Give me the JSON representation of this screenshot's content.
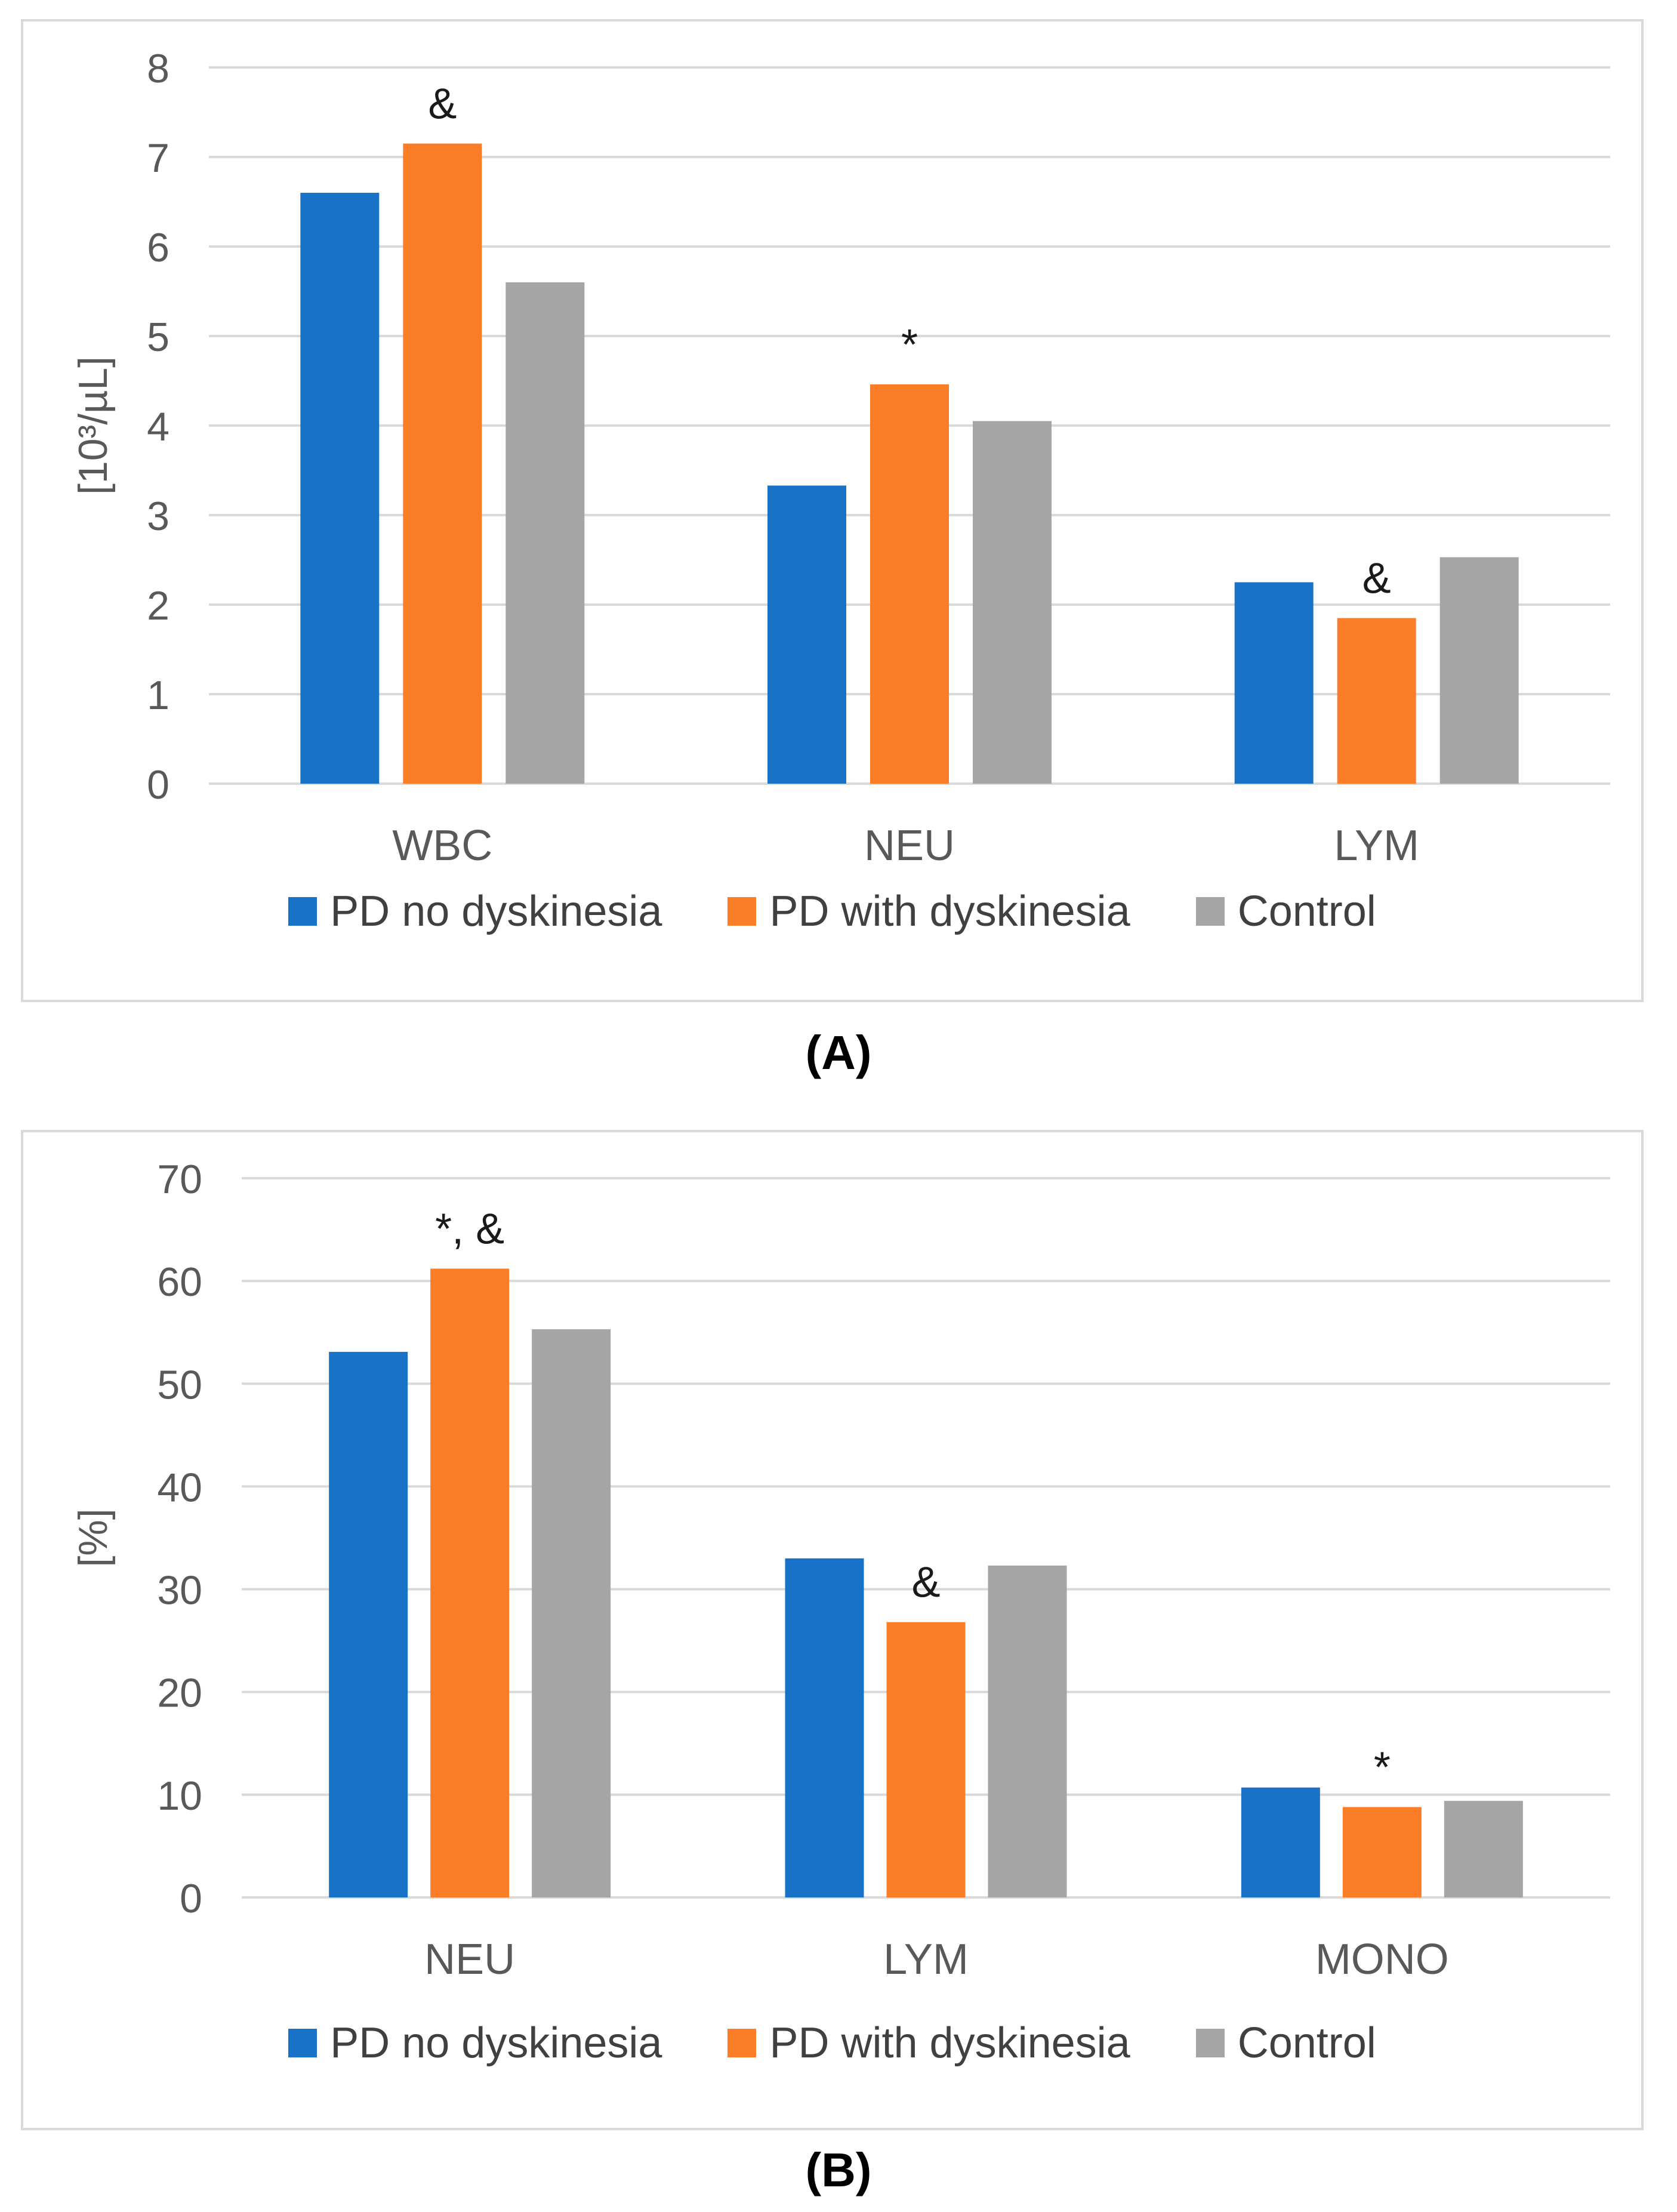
{
  "colors": {
    "series0": "#1872C8",
    "series1": "#FB7D28",
    "series2": "#A5A5A5"
  },
  "chart_data": [
    {
      "type": "bar",
      "caption": "(A)",
      "ylabel": "[10³/µL]",
      "ylim": [
        0,
        8
      ],
      "yticks": [
        "0",
        "1",
        "2",
        "3",
        "4",
        "5",
        "6",
        "7",
        "8"
      ],
      "grid": true,
      "legend_position": "bottom",
      "categories": [
        "WBC",
        "NEU",
        "LYM"
      ],
      "series": [
        {
          "name": "PD no dyskinesia",
          "values": [
            6.6,
            3.33,
            2.25
          ]
        },
        {
          "name": "PD with dyskinesia",
          "values": [
            7.15,
            4.46,
            1.85
          ]
        },
        {
          "name": "Control",
          "values": [
            5.6,
            4.05,
            2.53
          ]
        }
      ],
      "annotations": [
        {
          "category": 0,
          "series": 1,
          "text": "&"
        },
        {
          "category": 1,
          "series": 1,
          "text": "*"
        },
        {
          "category": 2,
          "series": 1,
          "text": "&"
        }
      ]
    },
    {
      "type": "bar",
      "caption": "(B)",
      "ylabel": "[%]",
      "ylim": [
        0,
        70
      ],
      "yticks": [
        "0",
        "10",
        "20",
        "30",
        "40",
        "50",
        "60",
        "70"
      ],
      "grid": true,
      "legend_position": "bottom",
      "categories": [
        "NEU",
        "LYM",
        "MONO"
      ],
      "series": [
        {
          "name": "PD no dyskinesia",
          "values": [
            53.1,
            33.0,
            10.7
          ]
        },
        {
          "name": "PD with dyskinesia",
          "values": [
            61.2,
            26.8,
            8.8
          ]
        },
        {
          "name": "Control",
          "values": [
            55.3,
            32.3,
            9.4
          ]
        }
      ],
      "annotations": [
        {
          "category": 0,
          "series": 1,
          "text": "*, &"
        },
        {
          "category": 1,
          "series": 1,
          "text": "&"
        },
        {
          "category": 2,
          "series": 1,
          "text": "*"
        }
      ]
    }
  ]
}
